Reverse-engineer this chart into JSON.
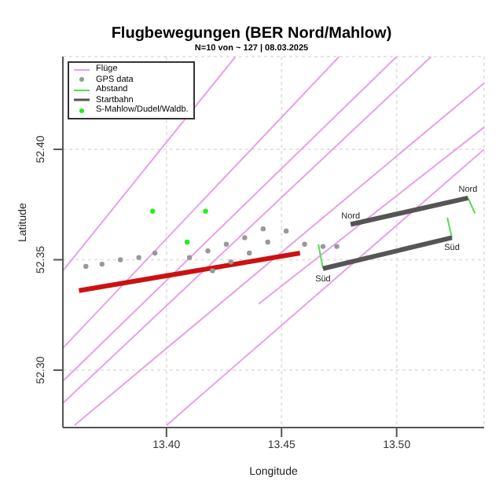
{
  "chart_data": {
    "type": "scatter",
    "title": "Flugbewegungen (BER Nord/Mahlow)",
    "subtitle": "N=10 von ~ 127 | 08.03.2025",
    "xlabel": "Longitude",
    "ylabel": "Latitude",
    "xlim": [
      13.355,
      13.538
    ],
    "ylim": [
      52.274,
      52.442
    ],
    "xticks": [
      {
        "value": 13.4,
        "label": "13.40"
      },
      {
        "value": 13.45,
        "label": "13.45"
      },
      {
        "value": 13.5,
        "label": "13.50"
      }
    ],
    "yticks": [
      {
        "value": 52.3,
        "label": "52.30"
      },
      {
        "value": 52.35,
        "label": "52.35"
      },
      {
        "value": 52.4,
        "label": "52.40"
      }
    ],
    "grid": true,
    "legend": "top left",
    "series": [
      {
        "type": "line",
        "name": "Flüge",
        "color": "#e8a0e8",
        "x": [
          13.355,
          13.43
        ],
        "values": [
          52.345,
          52.442
        ]
      },
      {
        "type": "line",
        "color": "#e8a0e8",
        "x": [
          13.355,
          13.475
        ],
        "values": [
          52.31,
          52.442
        ]
      },
      {
        "type": "line",
        "color": "#e8a0e8",
        "x": [
          13.355,
          13.5
        ],
        "values": [
          52.295,
          52.442
        ]
      },
      {
        "type": "line",
        "color": "#e8a0e8",
        "x": [
          13.355,
          13.515
        ],
        "values": [
          52.285,
          52.442
        ]
      },
      {
        "type": "line",
        "color": "#e8a0e8",
        "x": [
          13.36,
          13.538
        ],
        "values": [
          52.275,
          52.43
        ]
      },
      {
        "type": "line",
        "color": "#e8a0e8",
        "x": [
          13.4,
          13.538
        ],
        "values": [
          52.275,
          52.4
        ]
      },
      {
        "type": "line",
        "color": "#e8a0e8",
        "x": [
          13.44,
          13.538
        ],
        "values": [
          52.33,
          52.41
        ]
      },
      {
        "name": "GPS data",
        "marker": "circle",
        "color": "#999999",
        "x": [
          13.365,
          13.372,
          13.38,
          13.388,
          13.395,
          13.41,
          13.418,
          13.426,
          13.434,
          13.442,
          13.42,
          13.428,
          13.436,
          13.444,
          13.452,
          13.46,
          13.468,
          13.474
        ],
        "values": [
          52.347,
          52.348,
          52.35,
          52.351,
          52.353,
          52.351,
          52.354,
          52.357,
          52.36,
          52.364,
          52.345,
          52.349,
          52.353,
          52.358,
          52.363,
          52.357,
          52.356,
          52.356
        ]
      },
      {
        "type": "line",
        "color": "#cc1111",
        "x": [
          13.362,
          13.458
        ],
        "values": [
          52.336,
          52.353
        ]
      },
      {
        "type": "line",
        "name": "Abstand",
        "color": "#55dd55",
        "x": [
          13.468,
          13.466
        ],
        "values": [
          52.346,
          52.357
        ]
      },
      {
        "type": "line",
        "color": "#55dd55",
        "x": [
          13.524,
          13.522
        ],
        "values": [
          52.36,
          52.369
        ]
      },
      {
        "type": "line",
        "color": "#55dd55",
        "x": [
          13.531,
          13.534
        ],
        "values": [
          52.378,
          52.371
        ]
      },
      {
        "type": "line",
        "name": "Startbahn",
        "color": "#555555",
        "x": [
          13.48,
          13.531
        ],
        "values": [
          52.366,
          52.378
        ]
      },
      {
        "type": "line",
        "color": "#555555",
        "x": [
          13.468,
          13.524
        ],
        "values": [
          52.346,
          52.36
        ]
      },
      {
        "name": "S-Mahlow/Dudel/Waldb.",
        "marker": "circle",
        "color": "#22ee22",
        "x": [
          13.394,
          13.417,
          13.409
        ],
        "values": [
          52.372,
          52.372,
          52.358
        ]
      }
    ],
    "annotations": [
      {
        "text": "Nord",
        "x": 13.48,
        "y": 52.366
      },
      {
        "text": "Süd",
        "x": 13.468,
        "y": 52.346
      },
      {
        "text": "Süd",
        "x": 13.524,
        "y": 52.36
      },
      {
        "text": "Nord",
        "x": 13.531,
        "y": 52.378
      }
    ]
  }
}
